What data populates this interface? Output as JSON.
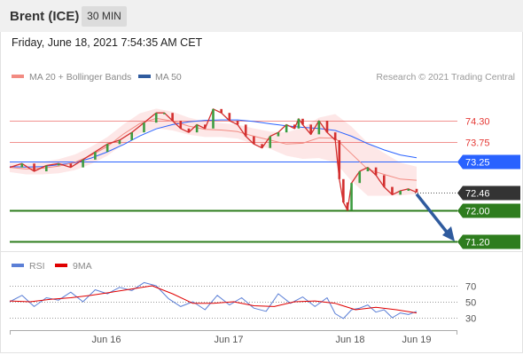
{
  "header": {
    "title": "Brent (ICE)",
    "timeframe": "30 MIN"
  },
  "timestamp": "Friday, June 18, 2021 7:54:35 AM CET",
  "legend": {
    "ma20": "MA 20 + Bollinger Bands",
    "ma50": "MA 50",
    "credit": "Research © 2021 Trading Central"
  },
  "colors": {
    "resistance": "#e53935",
    "support": "#2e7d1e",
    "ma50": "#2962ff",
    "ma20": "#f28b82",
    "bollinger_fill": "#fde3e3",
    "price": "#d32f2f",
    "current": "#333333",
    "arrow": "#2f5b9e",
    "rsi": "#5b7fd6",
    "rsi_ma": "#e00000"
  },
  "chart_data": [
    {
      "type": "line",
      "title": "Brent (ICE) 30 MIN",
      "x_labels": [
        "Jun 16",
        "Jun 17",
        "Jun 18",
        "Jun 19"
      ],
      "y_levels": [
        {
          "value": 74.3,
          "label": "74.30",
          "kind": "resistance"
        },
        {
          "value": 73.75,
          "label": "73.75",
          "kind": "resistance"
        },
        {
          "value": 73.25,
          "label": "73.25",
          "kind": "pivot"
        },
        {
          "value": 72.46,
          "label": "72.46",
          "kind": "last_price"
        },
        {
          "value": 72.0,
          "label": "72.00",
          "kind": "support"
        },
        {
          "value": 71.2,
          "label": "71.20",
          "kind": "support"
        }
      ],
      "ylim": [
        71.0,
        74.6
      ],
      "series": [
        {
          "name": "MA 20 + Bollinger Bands",
          "x": [
            0,
            4,
            8,
            12,
            16,
            20,
            24,
            28,
            32,
            36,
            40,
            44,
            48,
            52,
            56,
            60,
            64,
            68,
            72,
            76,
            80,
            84,
            88,
            92,
            96,
            100
          ],
          "values": [
            73.1,
            73.06,
            73.08,
            73.13,
            73.23,
            73.41,
            73.64,
            73.96,
            74.23,
            74.36,
            74.29,
            74.16,
            74.08,
            74.06,
            74.02,
            73.9,
            73.8,
            73.7,
            73.72,
            73.86,
            73.85,
            73.45,
            73.05,
            72.92,
            72.8,
            72.77
          ]
        },
        {
          "name": "MA 50",
          "x": [
            0,
            4,
            8,
            12,
            16,
            20,
            24,
            28,
            32,
            36,
            40,
            44,
            48,
            52,
            56,
            60,
            64,
            68,
            72,
            76,
            80,
            84,
            88,
            92,
            96,
            100
          ],
          "values": [
            73.12,
            73.11,
            73.12,
            73.17,
            73.22,
            73.34,
            73.5,
            73.69,
            73.91,
            74.09,
            74.2,
            74.27,
            74.31,
            74.32,
            74.32,
            74.28,
            74.22,
            74.17,
            74.13,
            74.1,
            74.05,
            73.9,
            73.71,
            73.55,
            73.42,
            73.35
          ]
        },
        {
          "name": "Price",
          "x": [
            0,
            3,
            6,
            9,
            12,
            15,
            18,
            21,
            24,
            27,
            30,
            33,
            36,
            38,
            40,
            42,
            44,
            46,
            48,
            50,
            52,
            54,
            56,
            58,
            60,
            62,
            64,
            66,
            68,
            70,
            71,
            72,
            74,
            76,
            78,
            80,
            81,
            82,
            83,
            84,
            86,
            88,
            90,
            92,
            94,
            96,
            98,
            100
          ],
          "values": [
            73.1,
            73.2,
            73.0,
            73.15,
            73.2,
            73.1,
            73.3,
            73.5,
            73.7,
            73.8,
            74.0,
            74.25,
            74.5,
            74.5,
            74.3,
            74.1,
            74.0,
            74.2,
            74.1,
            74.6,
            74.5,
            74.3,
            74.2,
            73.9,
            73.7,
            73.6,
            73.9,
            74.0,
            74.2,
            74.1,
            74.35,
            74.2,
            73.95,
            74.3,
            74.0,
            73.8,
            72.8,
            72.2,
            72.0,
            72.7,
            73.0,
            73.1,
            72.9,
            72.6,
            72.4,
            72.5,
            72.55,
            72.46
          ]
        }
      ]
    },
    {
      "type": "line",
      "title": "RSI",
      "x_labels": [
        "Jun 16",
        "Jun 17",
        "Jun 18",
        "Jun 19"
      ],
      "yticks": [
        70,
        50,
        30
      ],
      "ylim": [
        20,
        80
      ],
      "series": [
        {
          "name": "RSI",
          "x": [
            0,
            3,
            6,
            9,
            12,
            15,
            18,
            21,
            24,
            27,
            30,
            33,
            36,
            39,
            42,
            45,
            48,
            51,
            54,
            57,
            60,
            63,
            66,
            69,
            72,
            75,
            78,
            80,
            82,
            84,
            86,
            88,
            90,
            92,
            94,
            96,
            98,
            100
          ],
          "values": [
            50,
            58,
            44,
            55,
            52,
            62,
            50,
            65,
            60,
            68,
            64,
            74,
            70,
            54,
            44,
            50,
            40,
            58,
            46,
            55,
            42,
            38,
            60,
            48,
            56,
            44,
            55,
            35,
            29,
            40,
            42,
            46,
            37,
            40,
            30,
            36,
            34,
            38
          ]
        },
        {
          "name": "9MA",
          "x": [
            0,
            5,
            10,
            15,
            20,
            25,
            30,
            35,
            40,
            45,
            50,
            55,
            60,
            65,
            70,
            75,
            80,
            85,
            90,
            95,
            100
          ],
          "values": [
            51,
            50,
            53,
            55,
            58,
            62,
            66,
            70,
            60,
            48,
            48,
            50,
            45,
            44,
            50,
            51,
            48,
            40,
            43,
            40,
            36
          ]
        }
      ]
    }
  ]
}
